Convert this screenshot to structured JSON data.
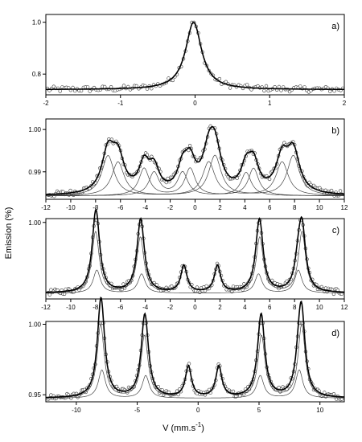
{
  "figure": {
    "ylabel": "Emission (%)",
    "xlabel_main": "V (mm.s",
    "xlabel_sup": "-1",
    "xlabel_tail": ")"
  },
  "chart_data": [
    {
      "type": "line",
      "panel_label": "a)",
      "xlim": [
        -2,
        2
      ],
      "ylim": [
        0.72,
        1.03
      ],
      "xticks": [
        -2,
        -1,
        0,
        1,
        2
      ],
      "yticks": [
        0.8,
        1.0
      ],
      "ytick_labels": [
        "0.8",
        "1.0"
      ],
      "baseline": 0.74,
      "series": [
        {
          "role": "fit-total",
          "components": [
            {
              "center": -0.02,
              "width": 0.13,
              "amplitude": 0.26
            }
          ]
        }
      ],
      "points_range": [
        -1.98,
        1.98
      ],
      "n_points": 140
    },
    {
      "type": "line",
      "panel_label": "b)",
      "xlim": [
        -12,
        12
      ],
      "ylim": [
        0.9835,
        1.0025
      ],
      "xticks": [
        -12,
        -10,
        -8,
        -6,
        -4,
        -2,
        0,
        2,
        4,
        6,
        8,
        10,
        12
      ],
      "yticks": [
        0.99,
        1.0
      ],
      "ytick_labels": [
        "0.99",
        "1.00"
      ],
      "baseline": 0.9843,
      "series": [
        {
          "role": "component",
          "components": [
            {
              "center": -7.0,
              "width": 0.6,
              "amplitude": 0.0095
            },
            {
              "center": 1.6,
              "width": 0.6,
              "amplitude": 0.0095
            },
            {
              "center": 7.9,
              "width": 0.6,
              "amplitude": 0.0095
            }
          ]
        },
        {
          "role": "component",
          "components": [
            {
              "center": -6.2,
              "width": 0.6,
              "amplitude": 0.008
            },
            {
              "center": 1.1,
              "width": 0.6,
              "amplitude": 0.008
            },
            {
              "center": 7.0,
              "width": 0.6,
              "amplitude": 0.008
            }
          ]
        },
        {
          "role": "component",
          "components": [
            {
              "center": -4.1,
              "width": 0.5,
              "amplitude": 0.0065
            },
            {
              "center": -0.4,
              "width": 0.5,
              "amplitude": 0.0065
            },
            {
              "center": 4.7,
              "width": 0.5,
              "amplitude": 0.0065
            }
          ]
        },
        {
          "role": "component",
          "components": [
            {
              "center": -3.3,
              "width": 0.5,
              "amplitude": 0.0055
            },
            {
              "center": -1.0,
              "width": 0.5,
              "amplitude": 0.0055
            },
            {
              "center": 4.1,
              "width": 0.5,
              "amplitude": 0.0055
            }
          ]
        }
      ],
      "points_range": [
        -11.8,
        11.8
      ],
      "n_points": 200
    },
    {
      "type": "line",
      "panel_label": "c)",
      "xlim": [
        -12,
        12
      ],
      "ylim": [
        0.8,
        1.01
      ],
      "xticks": [
        -12,
        -10,
        -8,
        -6,
        -4,
        -2,
        0,
        2,
        4,
        6,
        8,
        10,
        12
      ],
      "yticks": [
        1.0
      ],
      "ytick_labels": [
        "1.00"
      ],
      "baseline": 0.815,
      "series": [
        {
          "role": "component",
          "components": [
            {
              "center": -8.0,
              "width": 0.35,
              "amplitude": 0.16
            },
            {
              "center": -4.4,
              "width": 0.35,
              "amplitude": 0.145
            },
            {
              "center": -0.9,
              "width": 0.3,
              "amplitude": 0.07
            },
            {
              "center": 1.8,
              "width": 0.3,
              "amplitude": 0.07
            },
            {
              "center": 5.2,
              "width": 0.35,
              "amplitude": 0.145
            },
            {
              "center": 8.6,
              "width": 0.35,
              "amplitude": 0.16
            }
          ]
        },
        {
          "role": "component",
          "components": [
            {
              "center": -7.9,
              "width": 0.35,
              "amplitude": 0.06
            },
            {
              "center": -4.3,
              "width": 0.35,
              "amplitude": 0.05
            },
            {
              "center": 5.1,
              "width": 0.35,
              "amplitude": 0.05
            },
            {
              "center": 8.3,
              "width": 0.35,
              "amplitude": 0.06
            }
          ]
        }
      ],
      "points_range": [
        -11.8,
        11.8
      ],
      "n_points": 220
    },
    {
      "type": "line",
      "panel_label": "d)",
      "xlim": [
        -12.5,
        12
      ],
      "ylim": [
        0.945,
        1.002
      ],
      "xticks": [
        -10,
        -5,
        0,
        5,
        10
      ],
      "yticks": [
        0.95,
        1.0
      ],
      "ytick_labels": [
        "0.95",
        "1.00"
      ],
      "baseline": 0.9475,
      "series": [
        {
          "role": "component",
          "components": [
            {
              "center": -8.0,
              "width": 0.35,
              "amplitude": 0.052
            },
            {
              "center": -4.4,
              "width": 0.35,
              "amplitude": 0.044
            },
            {
              "center": -0.8,
              "width": 0.3,
              "amplitude": 0.022
            },
            {
              "center": 1.7,
              "width": 0.3,
              "amplitude": 0.022
            },
            {
              "center": 5.2,
              "width": 0.35,
              "amplitude": 0.044
            },
            {
              "center": 8.5,
              "width": 0.35,
              "amplitude": 0.052
            }
          ]
        },
        {
          "role": "component",
          "components": [
            {
              "center": -7.9,
              "width": 0.35,
              "amplitude": 0.02
            },
            {
              "center": -4.3,
              "width": 0.35,
              "amplitude": 0.016
            },
            {
              "center": 5.1,
              "width": 0.35,
              "amplitude": 0.016
            },
            {
              "center": 8.3,
              "width": 0.35,
              "amplitude": 0.02
            }
          ]
        }
      ],
      "points_range": [
        -12.3,
        11.8
      ],
      "n_points": 220
    }
  ]
}
